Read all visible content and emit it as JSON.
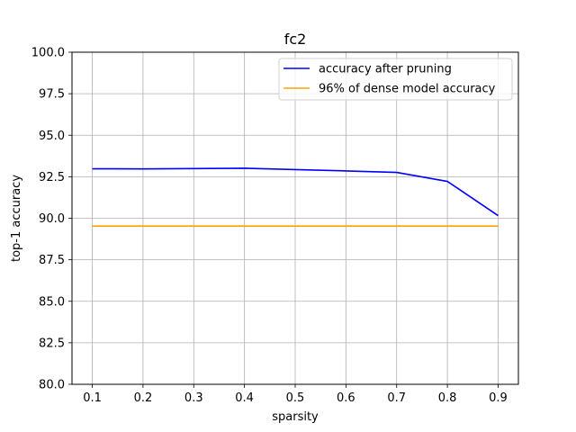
{
  "chart_data": {
    "type": "line",
    "title": "fc2",
    "xlabel": "sparsity",
    "ylabel": "top-1 accuracy",
    "xlim": [
      0.06,
      0.94
    ],
    "ylim": [
      80.0,
      100.0
    ],
    "xticks": [
      "0.1",
      "0.2",
      "0.3",
      "0.4",
      "0.5",
      "0.6",
      "0.7",
      "0.8",
      "0.9"
    ],
    "yticks": [
      "80.0",
      "82.5",
      "85.0",
      "87.5",
      "90.0",
      "92.5",
      "95.0",
      "97.5",
      "100.0"
    ],
    "grid": true,
    "legend_position": "top-right",
    "x": [
      0.1,
      0.2,
      0.3,
      0.4,
      0.5,
      0.6,
      0.7,
      0.8,
      0.9
    ],
    "series": [
      {
        "name": "accuracy after pruning",
        "color": "#0000ff",
        "values": [
          92.98,
          92.97,
          92.99,
          93.01,
          92.93,
          92.85,
          92.76,
          92.22,
          90.16
        ]
      },
      {
        "name": "96% of dense model accuracy",
        "color": "#ffa500",
        "values": [
          89.53,
          89.53,
          89.53,
          89.53,
          89.53,
          89.53,
          89.53,
          89.53,
          89.53
        ]
      }
    ]
  }
}
